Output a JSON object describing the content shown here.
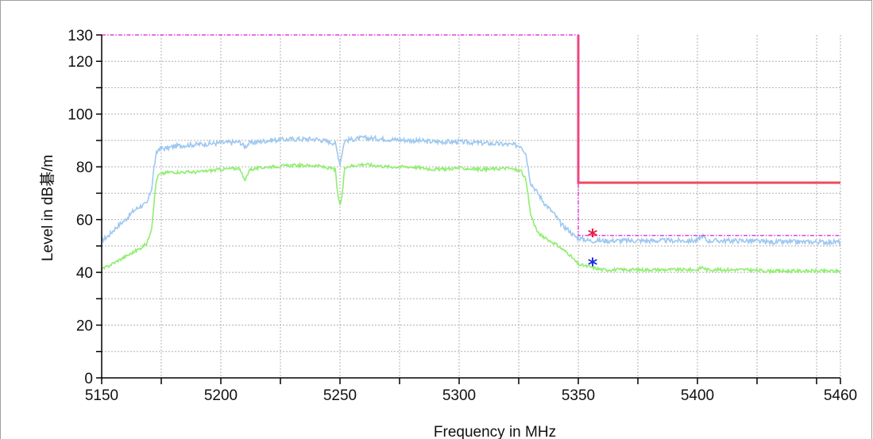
{
  "chart_data": {
    "type": "line",
    "xlabel": "Frequency in MHz",
    "ylabel": "Level in dB碁/m",
    "xlim": [
      5150,
      5460
    ],
    "ylim": [
      0,
      130
    ],
    "x_ticks": [
      "5150",
      "5200",
      "5250",
      "5300",
      "5350",
      "5400",
      "5460"
    ],
    "y_ticks": [
      "0",
      "20",
      "40",
      "60",
      "80",
      "100",
      "120",
      "130"
    ],
    "grid": true,
    "legend": "none",
    "colors": {
      "peak": "#9ec8f0",
      "average": "#90ee70",
      "limit_avg": "#f04a5a",
      "limit_peak": "#e040e0",
      "marker_peak": "#e8203c",
      "marker_avg": "#2030e0",
      "grid": "#b0b0b0",
      "frame": "#a0a0a0"
    },
    "series": [
      {
        "key": "peak",
        "x": [
          5150,
          5153,
          5156,
          5160,
          5163,
          5166,
          5169,
          5171,
          5172,
          5173,
          5174,
          5177,
          5182,
          5190,
          5200,
          5208,
          5210,
          5212,
          5220,
          5230,
          5240,
          5248,
          5249,
          5250,
          5251,
          5252,
          5260,
          5270,
          5280,
          5290,
          5300,
          5310,
          5320,
          5326,
          5328,
          5330,
          5333,
          5336,
          5340,
          5343,
          5346,
          5348,
          5350,
          5355,
          5360,
          5370,
          5380,
          5390,
          5400,
          5402,
          5404,
          5410,
          5420,
          5430,
          5440,
          5450,
          5460
        ],
        "y": [
          52,
          54,
          57,
          60,
          63,
          65,
          66,
          72,
          80,
          85,
          87,
          87,
          88,
          88.5,
          89,
          89.5,
          87.5,
          89,
          90,
          90.5,
          90.5,
          89,
          85,
          81,
          86,
          90,
          91,
          90.5,
          90,
          89.5,
          89.5,
          89,
          88.5,
          88,
          85,
          74,
          70,
          66,
          62,
          58,
          56,
          54,
          53,
          52,
          52,
          52,
          52,
          52,
          52,
          54,
          52,
          52,
          52,
          51.5,
          51.5,
          51.5,
          51.5
        ]
      },
      {
        "key": "average",
        "x": [
          5150,
          5154,
          5158,
          5162,
          5166,
          5169,
          5171,
          5172,
          5173,
          5174,
          5178,
          5190,
          5200,
          5208,
          5210,
          5212,
          5220,
          5230,
          5240,
          5248,
          5249,
          5250,
          5251,
          5252,
          5260,
          5270,
          5280,
          5290,
          5300,
          5310,
          5320,
          5326,
          5328,
          5330,
          5333,
          5336,
          5340,
          5343,
          5346,
          5348,
          5350,
          5355,
          5360,
          5370,
          5380,
          5390,
          5400,
          5402,
          5404,
          5410,
          5420,
          5430,
          5440,
          5450,
          5460
        ],
        "y": [
          41,
          43,
          45,
          47,
          49,
          51,
          57,
          67,
          75,
          77,
          78,
          78,
          79,
          79.5,
          74.5,
          79,
          80,
          80.5,
          80.5,
          79,
          70,
          65,
          70,
          80,
          81,
          80,
          80,
          79,
          79.5,
          79,
          79.5,
          78.5,
          75,
          62,
          55,
          53,
          51,
          49,
          47,
          45,
          43,
          42,
          41,
          41,
          41,
          41,
          41,
          42,
          41,
          41,
          41,
          40.5,
          40.5,
          40.5,
          40.5
        ]
      },
      {
        "key": "limit_avg",
        "x": [
          5350,
          5350,
          5460
        ],
        "y": [
          130,
          74,
          74
        ]
      },
      {
        "key": "limit_peak",
        "x": [
          5150,
          5350,
          5350,
          5460
        ],
        "y": [
          130,
          130,
          54,
          54
        ]
      }
    ],
    "markers": [
      {
        "key": "marker_peak",
        "x": 5356,
        "y": 54,
        "symbol": "*"
      },
      {
        "key": "marker_avg",
        "x": 5356,
        "y": 43,
        "symbol": "*"
      }
    ]
  }
}
